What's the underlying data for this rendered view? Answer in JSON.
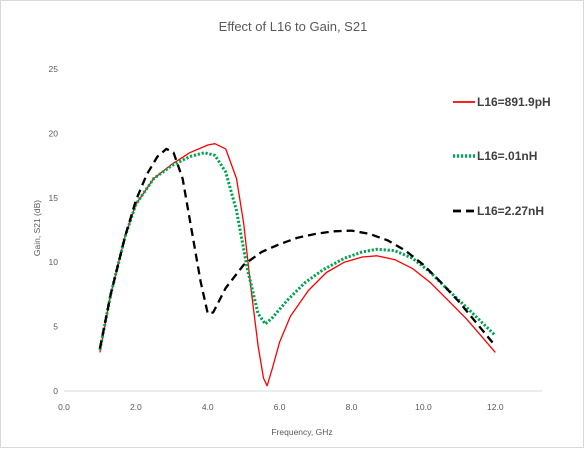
{
  "chart_data": {
    "type": "line",
    "title": "Effect of L16 to Gain, S21",
    "xlabel": "Frequency, GHz",
    "ylabel": "Gain, S21 (dB)",
    "xlim": [
      0,
      13.3
    ],
    "ylim": [
      0,
      25
    ],
    "x_ticks": [
      "0.0",
      "2.0",
      "4.0",
      "6.0",
      "8.0",
      "10.0",
      "12.0"
    ],
    "y_ticks": [
      "0",
      "5",
      "10",
      "15",
      "20",
      "25"
    ],
    "grid": false,
    "legend_position": "right",
    "series": [
      {
        "name": "L16=891.9pH",
        "color": "#ff0000",
        "dash": "solid",
        "points": [
          [
            1.0,
            3.0
          ],
          [
            1.3,
            7.5
          ],
          [
            1.7,
            12.0
          ],
          [
            2.0,
            14.5
          ],
          [
            2.5,
            16.5
          ],
          [
            3.0,
            17.6
          ],
          [
            3.5,
            18.5
          ],
          [
            4.0,
            19.1
          ],
          [
            4.2,
            19.2
          ],
          [
            4.5,
            18.8
          ],
          [
            4.8,
            16.5
          ],
          [
            5.0,
            13.0
          ],
          [
            5.2,
            8.0
          ],
          [
            5.4,
            3.5
          ],
          [
            5.55,
            1.0
          ],
          [
            5.65,
            0.4
          ],
          [
            5.8,
            1.8
          ],
          [
            6.0,
            3.8
          ],
          [
            6.3,
            5.8
          ],
          [
            6.8,
            7.8
          ],
          [
            7.3,
            9.2
          ],
          [
            7.8,
            10.0
          ],
          [
            8.3,
            10.4
          ],
          [
            8.7,
            10.5
          ],
          [
            9.2,
            10.2
          ],
          [
            9.7,
            9.5
          ],
          [
            10.2,
            8.4
          ],
          [
            10.7,
            7.0
          ],
          [
            11.2,
            5.6
          ],
          [
            11.6,
            4.3
          ],
          [
            12.0,
            3.0
          ]
        ]
      },
      {
        "name": "L16=.01nH",
        "color": "#00a550",
        "dash": "dotted",
        "points": [
          [
            1.0,
            3.2
          ],
          [
            1.3,
            7.5
          ],
          [
            1.7,
            12.0
          ],
          [
            2.0,
            14.5
          ],
          [
            2.5,
            16.5
          ],
          [
            3.0,
            17.5
          ],
          [
            3.5,
            18.2
          ],
          [
            3.9,
            18.5
          ],
          [
            4.2,
            18.3
          ],
          [
            4.5,
            17.0
          ],
          [
            4.8,
            14.0
          ],
          [
            5.1,
            9.5
          ],
          [
            5.4,
            6.0
          ],
          [
            5.6,
            5.2
          ],
          [
            5.8,
            5.7
          ],
          [
            6.2,
            7.0
          ],
          [
            6.7,
            8.4
          ],
          [
            7.2,
            9.4
          ],
          [
            7.8,
            10.3
          ],
          [
            8.3,
            10.8
          ],
          [
            8.7,
            11.0
          ],
          [
            9.2,
            10.9
          ],
          [
            9.7,
            10.3
          ],
          [
            10.2,
            9.2
          ],
          [
            10.7,
            7.8
          ],
          [
            11.2,
            6.5
          ],
          [
            11.6,
            5.4
          ],
          [
            12.0,
            4.3
          ]
        ]
      },
      {
        "name": "L16=2.27nH",
        "color": "#000000",
        "dash": "dashed",
        "points": [
          [
            1.0,
            3.3
          ],
          [
            1.3,
            7.5
          ],
          [
            1.7,
            12.0
          ],
          [
            2.0,
            14.8
          ],
          [
            2.3,
            16.8
          ],
          [
            2.6,
            18.2
          ],
          [
            2.85,
            18.8
          ],
          [
            3.05,
            18.5
          ],
          [
            3.3,
            16.5
          ],
          [
            3.55,
            12.5
          ],
          [
            3.8,
            8.5
          ],
          [
            4.0,
            6.0
          ],
          [
            4.15,
            6.1
          ],
          [
            4.5,
            8.0
          ],
          [
            5.0,
            9.8
          ],
          [
            5.5,
            10.8
          ],
          [
            6.0,
            11.4
          ],
          [
            6.5,
            11.9
          ],
          [
            7.0,
            12.2
          ],
          [
            7.5,
            12.4
          ],
          [
            8.0,
            12.45
          ],
          [
            8.5,
            12.2
          ],
          [
            9.0,
            11.7
          ],
          [
            9.5,
            10.9
          ],
          [
            10.0,
            9.8
          ],
          [
            10.5,
            8.4
          ],
          [
            11.0,
            6.9
          ],
          [
            11.5,
            5.2
          ],
          [
            12.0,
            3.5
          ]
        ]
      }
    ]
  }
}
